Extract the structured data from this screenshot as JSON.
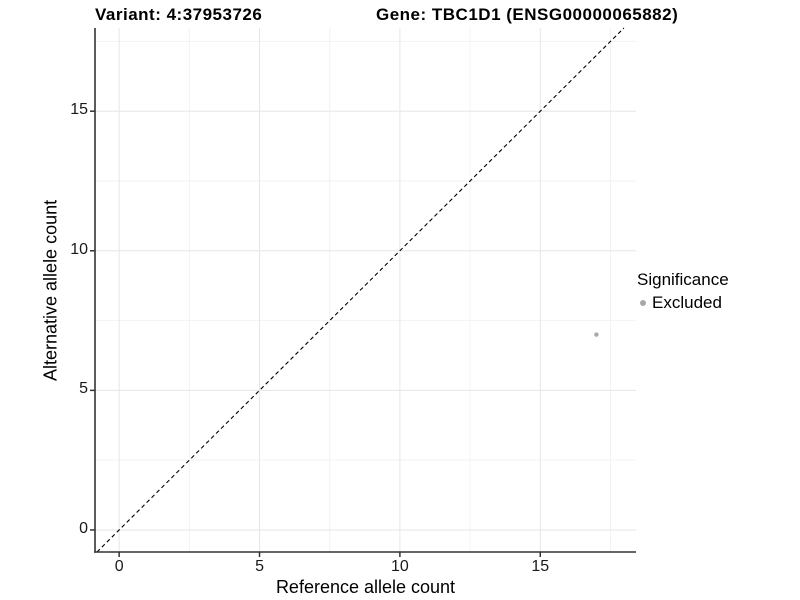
{
  "title": {
    "variant": "Variant: 4:37953726",
    "gene": "Gene: TBC1D1 (ENSG00000065882)"
  },
  "x_axis": {
    "label": "Reference allele count"
  },
  "y_axis": {
    "label": "Alternative allele count"
  },
  "legend": {
    "title": "Significance",
    "items": [
      {
        "label": "Excluded",
        "color": "#a8a8a8"
      }
    ]
  },
  "chart_data": {
    "type": "scatter",
    "title_left": "Variant: 4:37953726",
    "title_right": "Gene: TBC1D1 (ENSG00000065882)",
    "xlabel": "Reference allele count",
    "ylabel": "Alternative allele count",
    "xlim": [
      -0.86,
      18.41
    ],
    "ylim": [
      -0.79,
      17.98
    ],
    "x_ticks": [
      0,
      5,
      10,
      15
    ],
    "y_ticks": [
      0,
      5,
      10,
      15
    ],
    "x_minor_ticks": [
      2.5,
      7.5,
      12.5,
      17.5
    ],
    "y_minor_ticks": [
      2.5,
      7.5,
      12.5,
      17.5
    ],
    "grid": "major+minor",
    "legend_position": "right",
    "series": [
      {
        "name": "Excluded",
        "color": "#a8a8a8",
        "marker": "circle",
        "size": 2.2,
        "points": [
          {
            "x": 17,
            "y": 7
          }
        ]
      }
    ],
    "reference_line": {
      "type": "identity y=x",
      "style": "dashed",
      "color": "#000000"
    }
  },
  "colors": {
    "background": "#ffffff",
    "axis": "#333333",
    "grid_major": "#e6e6e6",
    "grid_minor": "#f2f2f2",
    "text": "#000000",
    "point": "#a8a8a8"
  }
}
